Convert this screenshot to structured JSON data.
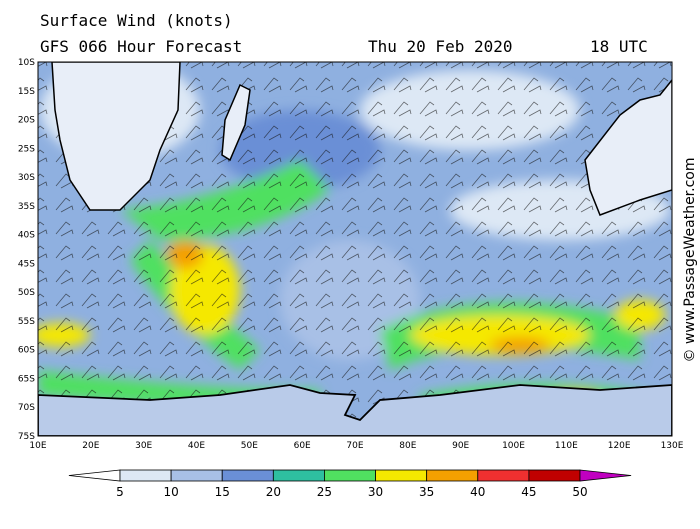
{
  "header": {
    "title": "Surface Wind (knots)",
    "model": "GFS 066 Hour Forecast",
    "date": "Thu 20 Feb 2020",
    "time": "18 UTC"
  },
  "lat_labels": [
    "10S",
    "15S",
    "20S",
    "25S",
    "30S",
    "35S",
    "40S",
    "45S",
    "50S",
    "55S",
    "60S",
    "65S",
    "70S",
    "75S"
  ],
  "lon_labels": [
    "10E",
    "20E",
    "30E",
    "40E",
    "50E",
    "60E",
    "70E",
    "80E",
    "90E",
    "100E",
    "110E",
    "120E",
    "130E"
  ],
  "colorbar": {
    "ticks": [
      5,
      10,
      15,
      20,
      25,
      30,
      35,
      40,
      45,
      50
    ],
    "colors": [
      "#ffffff",
      "#dde8f5",
      "#a8c0e6",
      "#6a8fd6",
      "#2ebfa0",
      "#50e060",
      "#f5e800",
      "#f5a000",
      "#f03030",
      "#c00000",
      "#c000c0"
    ]
  },
  "credit": "© www.PassageWeather.com"
}
